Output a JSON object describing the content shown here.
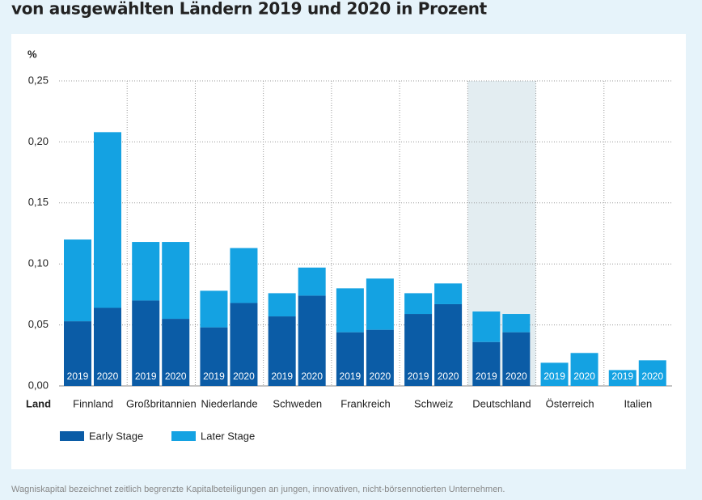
{
  "chart_data": {
    "type": "stacked-bar",
    "title": "von ausgewählten Ländern 2019 und 2020 in Prozent",
    "y_unit": "%",
    "x_label": "Land",
    "note": "Wagniskapital bezeichnet zeitlich begrenzte Kapitalbeteiligungen an jungen, innovativen, nicht-börsennotierten Unternehmen.",
    "categories": [
      "Finnland",
      "Großbritannien",
      "Niederlande",
      "Schweden",
      "Frankreich",
      "Schweiz",
      "Deutschland",
      "Österreich",
      "Italien"
    ],
    "years": [
      "2019",
      "2020"
    ],
    "highlight": "Deutschland",
    "series": [
      {
        "name": "Early Stage",
        "color": "#0b5ca6",
        "values": [
          [
            0.053,
            0.064
          ],
          [
            0.07,
            0.055
          ],
          [
            0.048,
            0.068
          ],
          [
            0.057,
            0.074
          ],
          [
            0.044,
            0.046
          ],
          [
            0.059,
            0.067
          ],
          [
            0.036,
            0.044
          ],
          [
            0,
            0
          ],
          [
            0,
            0
          ]
        ]
      },
      {
        "name": "Later Stage",
        "color": "#14a2e2",
        "values": [
          [
            0.067,
            0.144
          ],
          [
            0.048,
            0.063
          ],
          [
            0.03,
            0.045
          ],
          [
            0.019,
            0.023
          ],
          [
            0.036,
            0.042
          ],
          [
            0.017,
            0.017
          ],
          [
            0.025,
            0.015
          ],
          [
            0.019,
            0.027
          ],
          [
            0.013,
            0.021
          ]
        ]
      }
    ],
    "ylim": [
      0,
      0.25
    ],
    "yticks": [
      {
        "value": 0,
        "label": "0,00"
      },
      {
        "value": 0.05,
        "label": "0,05"
      },
      {
        "value": 0.1,
        "label": "0,10"
      },
      {
        "value": 0.15,
        "label": "0,15"
      },
      {
        "value": 0.2,
        "label": "0,20"
      },
      {
        "value": 0.25,
        "label": "0,25"
      }
    ],
    "grid": true
  }
}
